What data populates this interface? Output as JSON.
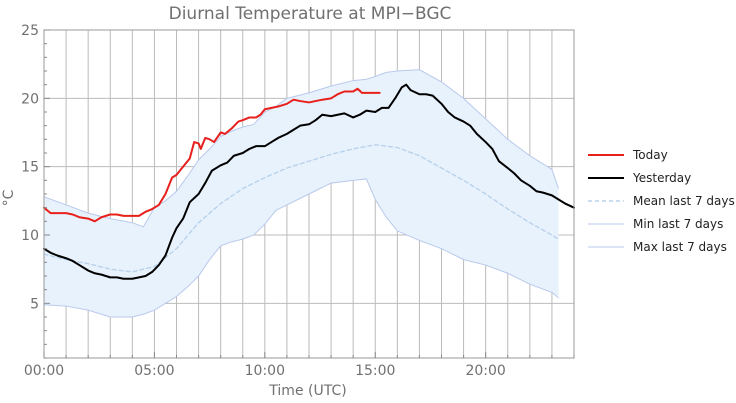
{
  "chart_data": {
    "type": "line",
    "title": "Diurnal Temperature at MPI−BGC",
    "xlabel": "Time (UTC)",
    "ylabel": "°C",
    "xlim": [
      0,
      24
    ],
    "ylim": [
      1,
      25
    ],
    "x_ticks": [
      {
        "value": 0,
        "label": "00:00"
      },
      {
        "value": 5,
        "label": "05:00"
      },
      {
        "value": 10,
        "label": "10:00"
      },
      {
        "value": 15,
        "label": "15:00"
      },
      {
        "value": 20,
        "label": "20:00"
      }
    ],
    "y_ticks": [
      {
        "value": 5,
        "label": "5"
      },
      {
        "value": 10,
        "label": "10"
      },
      {
        "value": 15,
        "label": "15"
      },
      {
        "value": 20,
        "label": "20"
      },
      {
        "value": 25,
        "label": "25"
      }
    ],
    "grid": true,
    "legend_position": "right",
    "band": {
      "name": "",
      "color": "#e8f2fc",
      "edge_color": "#b9c9ec",
      "x": [
        0,
        1,
        2,
        3,
        4,
        4.5,
        5,
        5.5,
        6,
        6.5,
        7,
        7.5,
        8,
        8.5,
        9,
        9.5,
        10,
        10.5,
        11,
        12,
        13,
        14,
        14.6,
        15,
        15.5,
        16,
        17,
        18,
        19,
        20,
        21,
        22,
        23,
        23.3
      ],
      "lower": [
        4.9,
        4.8,
        4.5,
        4.0,
        4.0,
        4.2,
        4.5,
        5.0,
        5.5,
        6.2,
        7.0,
        8.2,
        9.2,
        9.5,
        9.7,
        10.0,
        10.8,
        11.8,
        12.2,
        13.0,
        13.8,
        14.0,
        14.1,
        12.6,
        11.3,
        10.3,
        9.6,
        9.0,
        8.2,
        7.8,
        7.2,
        6.4,
        5.8,
        5.4
      ],
      "upper": [
        12.8,
        12.2,
        11.6,
        11.2,
        10.9,
        10.6,
        12.0,
        12.5,
        13.2,
        14.3,
        15.5,
        16.3,
        17.2,
        17.6,
        17.9,
        18.1,
        19.0,
        19.4,
        20.0,
        20.4,
        20.9,
        21.3,
        21.4,
        21.6,
        21.9,
        22.0,
        22.1,
        21.2,
        20.0,
        18.5,
        17.0,
        15.8,
        14.8,
        13.4
      ]
    },
    "series": [
      {
        "name": "Today",
        "color": "#e8201c",
        "width": 2,
        "dash": "",
        "x": [
          0,
          0.3,
          0.6,
          1.0,
          1.3,
          1.6,
          2.0,
          2.3,
          2.6,
          3.0,
          3.3,
          3.6,
          4.0,
          4.3,
          4.6,
          4.9,
          5.2,
          5.5,
          5.8,
          6.0,
          6.3,
          6.6,
          6.8,
          7.0,
          7.1,
          7.3,
          7.5,
          7.7,
          8.0,
          8.2,
          8.5,
          8.8,
          9.0,
          9.3,
          9.6,
          9.8,
          10.0,
          10.3,
          10.6,
          11.0,
          11.3,
          11.6,
          12.0,
          12.3,
          12.6,
          13.0,
          13.3,
          13.6,
          14.0,
          14.2,
          14.4,
          14.6,
          14.8,
          15.0,
          15.2
        ],
        "y": [
          12.0,
          11.6,
          11.6,
          11.6,
          11.5,
          11.3,
          11.2,
          11.0,
          11.3,
          11.5,
          11.5,
          11.4,
          11.4,
          11.4,
          11.7,
          11.9,
          12.2,
          13.0,
          14.2,
          14.4,
          15.0,
          15.6,
          16.8,
          16.7,
          16.3,
          17.1,
          17.0,
          16.8,
          17.5,
          17.4,
          17.8,
          18.3,
          18.4,
          18.6,
          18.6,
          18.8,
          19.2,
          19.3,
          19.4,
          19.6,
          19.9,
          19.8,
          19.7,
          19.8,
          19.9,
          20.0,
          20.3,
          20.5,
          20.5,
          20.7,
          20.4,
          20.4,
          20.4,
          20.4,
          20.4
        ]
      },
      {
        "name": "Yesterday",
        "color": "#000000",
        "width": 2,
        "dash": "",
        "x": [
          0,
          0.3,
          0.6,
          1.0,
          1.3,
          1.6,
          2.0,
          2.3,
          2.6,
          3.0,
          3.3,
          3.6,
          4.0,
          4.3,
          4.6,
          4.9,
          5.2,
          5.5,
          5.8,
          6.0,
          6.3,
          6.6,
          7.0,
          7.3,
          7.6,
          8.0,
          8.3,
          8.6,
          9.0,
          9.3,
          9.6,
          10.0,
          10.3,
          10.6,
          11.0,
          11.3,
          11.6,
          12.0,
          12.3,
          12.6,
          13.0,
          13.3,
          13.6,
          14.0,
          14.3,
          14.6,
          15.0,
          15.3,
          15.6,
          15.9,
          16.2,
          16.4,
          16.6,
          17.0,
          17.3,
          17.6,
          18.0,
          18.3,
          18.6,
          19.0,
          19.3,
          19.6,
          20.0,
          20.3,
          20.6,
          21.0,
          21.3,
          21.6,
          22.0,
          22.3,
          22.6,
          23.0,
          23.3,
          23.6,
          24.0
        ],
        "y": [
          9.0,
          8.7,
          8.5,
          8.3,
          8.1,
          7.8,
          7.4,
          7.2,
          7.1,
          6.9,
          6.9,
          6.8,
          6.8,
          6.9,
          7.0,
          7.3,
          7.8,
          8.5,
          9.8,
          10.5,
          11.2,
          12.4,
          13.0,
          13.8,
          14.7,
          15.1,
          15.3,
          15.8,
          16.0,
          16.3,
          16.5,
          16.5,
          16.8,
          17.1,
          17.4,
          17.7,
          18.0,
          18.1,
          18.4,
          18.8,
          18.7,
          18.8,
          18.9,
          18.6,
          18.8,
          19.1,
          19.0,
          19.3,
          19.3,
          20.0,
          20.8,
          21.0,
          20.6,
          20.3,
          20.3,
          20.2,
          19.6,
          19.0,
          18.6,
          18.3,
          18.0,
          17.4,
          16.8,
          16.3,
          15.4,
          14.9,
          14.5,
          14.0,
          13.6,
          13.2,
          13.1,
          12.9,
          12.6,
          12.3,
          12.0
        ]
      },
      {
        "name": "Mean last 7 days",
        "color": "#b8d2ec",
        "width": 1.4,
        "dash": "4,3",
        "x": [
          0,
          1,
          2,
          3,
          4,
          5,
          6,
          7,
          8,
          9,
          10,
          11,
          12,
          13,
          14,
          15,
          16,
          17,
          18,
          19,
          20,
          21,
          22,
          23,
          23.3
        ],
        "y": [
          8.6,
          8.2,
          7.9,
          7.5,
          7.3,
          7.7,
          9.0,
          10.9,
          12.3,
          13.4,
          14.2,
          14.9,
          15.4,
          15.9,
          16.3,
          16.6,
          16.4,
          15.8,
          14.9,
          14.0,
          13.0,
          11.9,
          10.9,
          10.0,
          9.7
        ]
      },
      {
        "name": "Min last 7 days",
        "color": "#b9c9ec",
        "width": 1,
        "dash": ""
      },
      {
        "name": "Max last 7 days",
        "color": "#b9c9ec",
        "width": 1,
        "dash": ""
      }
    ]
  }
}
